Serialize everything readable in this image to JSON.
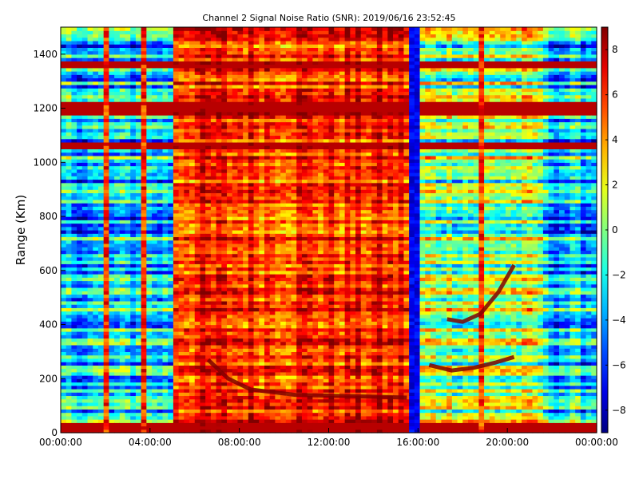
{
  "chart_data": {
    "type": "heatmap",
    "title": "Channel 2 Signal Noise Ratio (SNR): 2019/06/16 23:52:45",
    "xlabel": "",
    "ylabel": "Range (Km)",
    "x_ticks": [
      "00:00:00",
      "04:00:00",
      "08:00:00",
      "12:00:00",
      "16:00:00",
      "20:00:00",
      "00:00:00"
    ],
    "y_ticks": [
      "0",
      "200",
      "400",
      "600",
      "800",
      "1000",
      "1200",
      "1400"
    ],
    "x_range_hours": [
      0,
      24
    ],
    "y_range_km": [
      0,
      1500
    ],
    "colorbar": {
      "colormap": "jet",
      "range": [
        -9,
        9
      ],
      "ticks": [
        "−8",
        "−6",
        "−4",
        "−2",
        "0",
        "2",
        "4",
        "6",
        "8"
      ],
      "tick_values": [
        -8,
        -6,
        -4,
        -2,
        0,
        2,
        4,
        6,
        8
      ]
    },
    "grid": false,
    "features": {
      "low_snr_periods_hours": [
        [
          0,
          5
        ],
        [
          21.5,
          24
        ]
      ],
      "high_snr_period_hours": [
        5,
        16
      ],
      "dropout_band_hours": [
        15.6,
        16.2
      ],
      "vertical_streaks_hours": [
        2.1,
        3.8,
        18.9
      ],
      "strong_layers_km": [
        [
          0,
          40
        ],
        [
          1050,
          1080
        ],
        [
          1180,
          1220
        ],
        [
          1350,
          1380
        ]
      ],
      "traces": [
        {
          "hours": [
            6.6,
            7.5,
            8.5,
            10.5,
            13,
            15.5
          ],
          "km": [
            270,
            200,
            160,
            140,
            135,
            130
          ]
        },
        {
          "hours": [
            16.5,
            17.5,
            18.5,
            19.5,
            20.3
          ],
          "km": [
            250,
            230,
            240,
            260,
            280
          ]
        },
        {
          "hours": [
            17.3,
            18,
            18.8,
            19.6,
            20.3
          ],
          "km": [
            420,
            410,
            440,
            520,
            620
          ]
        }
      ]
    }
  }
}
